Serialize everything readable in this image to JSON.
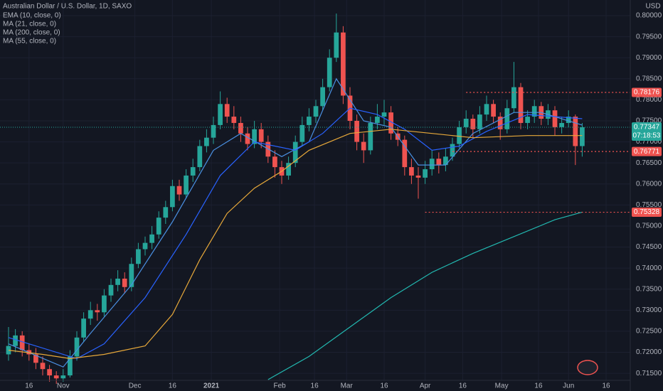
{
  "chart_data": {
    "type": "candlestick",
    "title": "Australian Dollar / U.S. Dollar, 1D, SAXO",
    "currency": "USD",
    "up_color": "#26a69a",
    "down_color": "#ef5350",
    "grid": true,
    "candles": [
      [
        0.7195,
        0.726,
        0.718,
        0.7215
      ],
      [
        0.7215,
        0.7255,
        0.72,
        0.724
      ],
      [
        0.724,
        0.725,
        0.719,
        0.7205
      ],
      [
        0.7205,
        0.722,
        0.718,
        0.7195
      ],
      [
        0.7195,
        0.721,
        0.716,
        0.7175
      ],
      [
        0.7175,
        0.719,
        0.7145,
        0.716
      ],
      [
        0.716,
        0.717,
        0.713,
        0.7145
      ],
      [
        0.7145,
        0.7155,
        0.7125,
        0.7138
      ],
      [
        0.7138,
        0.716,
        0.713,
        0.7145
      ],
      [
        0.7145,
        0.7205,
        0.714,
        0.719
      ],
      [
        0.719,
        0.725,
        0.718,
        0.7235
      ],
      [
        0.7235,
        0.7295,
        0.7225,
        0.728
      ],
      [
        0.728,
        0.732,
        0.7265,
        0.73
      ],
      [
        0.73,
        0.7315,
        0.7275,
        0.7295
      ],
      [
        0.7295,
        0.735,
        0.7285,
        0.7335
      ],
      [
        0.7335,
        0.7375,
        0.732,
        0.736
      ],
      [
        0.736,
        0.7395,
        0.7345,
        0.7375
      ],
      [
        0.7375,
        0.739,
        0.734,
        0.7355
      ],
      [
        0.7355,
        0.7425,
        0.7345,
        0.741
      ],
      [
        0.741,
        0.746,
        0.74,
        0.7445
      ],
      [
        0.7445,
        0.7475,
        0.743,
        0.746
      ],
      [
        0.746,
        0.75,
        0.7445,
        0.748
      ],
      [
        0.748,
        0.7535,
        0.747,
        0.752
      ],
      [
        0.752,
        0.756,
        0.7505,
        0.7545
      ],
      [
        0.7545,
        0.761,
        0.7535,
        0.7595
      ],
      [
        0.7595,
        0.761,
        0.756,
        0.7575
      ],
      [
        0.7575,
        0.7635,
        0.7565,
        0.762
      ],
      [
        0.762,
        0.766,
        0.7605,
        0.764
      ],
      [
        0.764,
        0.7705,
        0.763,
        0.769
      ],
      [
        0.769,
        0.773,
        0.7675,
        0.771
      ],
      [
        0.771,
        0.776,
        0.7695,
        0.774
      ],
      [
        0.774,
        0.782,
        0.773,
        0.779
      ],
      [
        0.779,
        0.7805,
        0.7745,
        0.776
      ],
      [
        0.776,
        0.7785,
        0.773,
        0.7745
      ],
      [
        0.7745,
        0.776,
        0.77,
        0.772
      ],
      [
        0.772,
        0.7735,
        0.768,
        0.7695
      ],
      [
        0.7695,
        0.775,
        0.7685,
        0.773
      ],
      [
        0.773,
        0.7745,
        0.7685,
        0.77
      ],
      [
        0.77,
        0.7715,
        0.765,
        0.7665
      ],
      [
        0.7665,
        0.768,
        0.7615,
        0.764
      ],
      [
        0.764,
        0.7655,
        0.76,
        0.762
      ],
      [
        0.762,
        0.7665,
        0.761,
        0.765
      ],
      [
        0.765,
        0.7715,
        0.764,
        0.77
      ],
      [
        0.77,
        0.776,
        0.769,
        0.774
      ],
      [
        0.774,
        0.778,
        0.7725,
        0.776
      ],
      [
        0.776,
        0.78,
        0.7745,
        0.7785
      ],
      [
        0.7785,
        0.785,
        0.7775,
        0.783
      ],
      [
        0.783,
        0.792,
        0.782,
        0.79
      ],
      [
        0.79,
        0.8005,
        0.789,
        0.796
      ],
      [
        0.796,
        0.7975,
        0.779,
        0.781
      ],
      [
        0.781,
        0.783,
        0.773,
        0.775
      ],
      [
        0.775,
        0.7765,
        0.768,
        0.77
      ],
      [
        0.77,
        0.772,
        0.765,
        0.768
      ],
      [
        0.768,
        0.776,
        0.767,
        0.7745
      ],
      [
        0.7745,
        0.779,
        0.773,
        0.776
      ],
      [
        0.776,
        0.78,
        0.774,
        0.777
      ],
      [
        0.777,
        0.7785,
        0.7705,
        0.772
      ],
      [
        0.772,
        0.7735,
        0.769,
        0.7705
      ],
      [
        0.7705,
        0.7715,
        0.762,
        0.764
      ],
      [
        0.764,
        0.766,
        0.76,
        0.762
      ],
      [
        0.762,
        0.764,
        0.7565,
        0.7615
      ],
      [
        0.7615,
        0.7655,
        0.76,
        0.7635
      ],
      [
        0.7635,
        0.768,
        0.762,
        0.766
      ],
      [
        0.766,
        0.7675,
        0.7625,
        0.7645
      ],
      [
        0.7645,
        0.7685,
        0.763,
        0.7665
      ],
      [
        0.7665,
        0.771,
        0.7655,
        0.7695
      ],
      [
        0.7695,
        0.775,
        0.7685,
        0.7735
      ],
      [
        0.7735,
        0.7775,
        0.772,
        0.7755
      ],
      [
        0.7755,
        0.7765,
        0.771,
        0.773
      ],
      [
        0.773,
        0.7785,
        0.772,
        0.7765
      ],
      [
        0.7765,
        0.781,
        0.775,
        0.779
      ],
      [
        0.779,
        0.78,
        0.7745,
        0.776
      ],
      [
        0.776,
        0.777,
        0.7705,
        0.773
      ],
      [
        0.773,
        0.78,
        0.772,
        0.778
      ],
      [
        0.778,
        0.789,
        0.777,
        0.783
      ],
      [
        0.783,
        0.784,
        0.773,
        0.7745
      ],
      [
        0.7745,
        0.7775,
        0.773,
        0.776
      ],
      [
        0.776,
        0.78,
        0.7745,
        0.7785
      ],
      [
        0.7785,
        0.7795,
        0.774,
        0.7755
      ],
      [
        0.7755,
        0.779,
        0.774,
        0.7775
      ],
      [
        0.7775,
        0.7785,
        0.7715,
        0.7735
      ],
      [
        0.7735,
        0.776,
        0.772,
        0.7745
      ],
      [
        0.7745,
        0.7775,
        0.7735,
        0.776
      ],
      [
        0.776,
        0.7765,
        0.7645,
        0.769
      ],
      [
        0.769,
        0.7745,
        0.7665,
        0.77347
      ]
    ],
    "series": [
      {
        "name": "EMA (10, close, 0)",
        "color": "#4a90e2",
        "x": [
          0,
          8,
          12,
          18,
          24,
          30,
          34,
          40,
          44,
          48,
          52,
          56,
          60,
          64,
          68,
          74,
          78,
          84
        ],
        "values": [
          0.722,
          0.7165,
          0.7245,
          0.736,
          0.751,
          0.768,
          0.772,
          0.7665,
          0.77,
          0.785,
          0.775,
          0.7735,
          0.7645,
          0.7645,
          0.772,
          0.777,
          0.777,
          0.774
        ]
      },
      {
        "name": "MA (21, close, 0)",
        "color": "#2962ff",
        "x": [
          0,
          10,
          14,
          20,
          26,
          31,
          36,
          42,
          46,
          50,
          54,
          58,
          62,
          66,
          70,
          76,
          84
        ],
        "values": [
          0.7235,
          0.7185,
          0.722,
          0.733,
          0.748,
          0.762,
          0.77,
          0.768,
          0.772,
          0.778,
          0.7765,
          0.773,
          0.768,
          0.769,
          0.7725,
          0.7765,
          0.7755
        ]
      },
      {
        "name": "MA (200, close, 0)",
        "color": "#22b8b0",
        "x": [
          38,
          44,
          50,
          56,
          62,
          68,
          74,
          80,
          84
        ],
        "values": [
          0.7135,
          0.719,
          0.726,
          0.733,
          0.739,
          0.7435,
          0.7475,
          0.7515,
          0.7533
        ]
      },
      {
        "name": "MA (55, close, 0)",
        "color": "#e8a93a",
        "x": [
          0,
          5,
          9,
          14,
          20,
          24,
          28,
          32,
          36,
          40,
          44,
          50,
          56,
          62,
          68,
          76,
          84
        ],
        "values": [
          0.7205,
          0.7195,
          0.7185,
          0.7195,
          0.7215,
          0.729,
          0.742,
          0.753,
          0.759,
          0.763,
          0.768,
          0.772,
          0.773,
          0.772,
          0.771,
          0.7715,
          0.7715
        ]
      }
    ],
    "levels": [
      {
        "value": 0.78176,
        "x": 67
      },
      {
        "value": 0.76771,
        "x": 65
      },
      {
        "value": 0.75328,
        "x": 61
      }
    ],
    "last_price": {
      "value": 0.77347,
      "countdown": "07:18:53"
    },
    "xlim": [
      -1.25,
      91.04
    ],
    "xticks": [
      {
        "value": 3,
        "label": "16"
      },
      {
        "value": 8,
        "label": "Nov"
      },
      {
        "value": 18.5,
        "label": "Dec"
      },
      {
        "value": 24,
        "label": "16"
      },
      {
        "value": 29.7,
        "label": "2021"
      },
      {
        "value": 39.7,
        "label": "Feb"
      },
      {
        "value": 44.8,
        "label": "16"
      },
      {
        "value": 49.5,
        "label": "Mar"
      },
      {
        "value": 55,
        "label": "16"
      },
      {
        "value": 61,
        "label": "Apr"
      },
      {
        "value": 66.5,
        "label": "16"
      },
      {
        "value": 72.2,
        "label": "May"
      },
      {
        "value": 77.6,
        "label": "16"
      },
      {
        "value": 82,
        "label": "Jun"
      },
      {
        "value": 87.5,
        "label": "16"
      }
    ],
    "ylim": [
      0.71333,
      0.80372
    ],
    "yticks": [
      {
        "value": 0.715,
        "label": "0.71500"
      },
      {
        "value": 0.72,
        "label": "0.72000"
      },
      {
        "value": 0.725,
        "label": "0.72500"
      },
      {
        "value": 0.73,
        "label": "0.73000"
      },
      {
        "value": 0.735,
        "label": "0.73500"
      },
      {
        "value": 0.74,
        "label": "0.74000"
      },
      {
        "value": 0.745,
        "label": "0.74500"
      },
      {
        "value": 0.75,
        "label": "0.75000"
      },
      {
        "value": 0.755,
        "label": "0.75500"
      },
      {
        "value": 0.76,
        "label": "0.76000"
      },
      {
        "value": 0.765,
        "label": "0.76500"
      },
      {
        "value": 0.77,
        "label": "0.77000"
      },
      {
        "value": 0.775,
        "label": "0.77500"
      },
      {
        "value": 0.78,
        "label": "0.78000"
      },
      {
        "value": 0.785,
        "label": "0.78500"
      },
      {
        "value": 0.79,
        "label": "0.79000"
      },
      {
        "value": 0.795,
        "label": "0.79500"
      },
      {
        "value": 0.8,
        "label": "0.80000"
      }
    ]
  }
}
